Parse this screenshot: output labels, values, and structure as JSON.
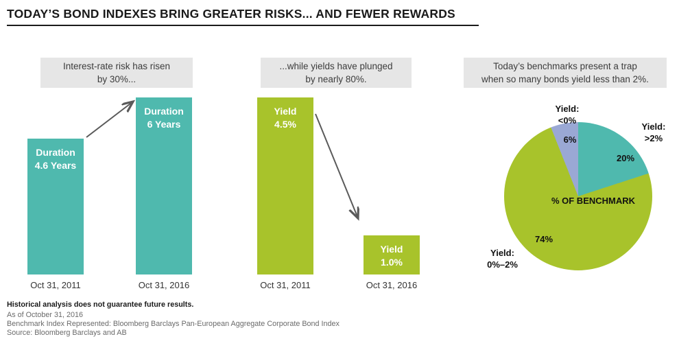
{
  "header": {
    "title": "TODAY’S BOND INDEXES BRING GREATER RISKS... AND FEWER REWARDS"
  },
  "colors": {
    "teal": "#4fb9ae",
    "green": "#a8c32b",
    "periwinkle": "#9aa8d4",
    "caption_bg": "#e6e6e6",
    "arrow": "#5a5a5a"
  },
  "chart_data": [
    {
      "type": "bar",
      "caption_lines": [
        "Interest-rate risk has risen",
        "by 30%..."
      ],
      "categories": [
        "Oct 31, 2011",
        "Oct 31, 2016"
      ],
      "values": [
        4.6,
        6
      ],
      "bar_labels": [
        [
          "Duration",
          "4.6 Years"
        ],
        [
          "Duration",
          "6 Years"
        ]
      ],
      "color": "#4fb9ae",
      "ylim": [
        0,
        6
      ],
      "annotation": "up-arrow"
    },
    {
      "type": "bar",
      "caption_lines": [
        "...while yields have plunged",
        "by nearly 80%."
      ],
      "categories": [
        "Oct 31, 2011",
        "Oct 31, 2016"
      ],
      "values": [
        4.5,
        1.0
      ],
      "bar_labels": [
        [
          "Yield",
          "4.5%"
        ],
        [
          "Yield",
          "1.0%"
        ]
      ],
      "color": "#a8c32b",
      "ylim": [
        0,
        4.5
      ],
      "annotation": "down-arrow"
    },
    {
      "type": "pie",
      "caption_lines": [
        "Today’s benchmarks present a trap",
        "when so many bonds yield less than 2%."
      ],
      "center_label": "% OF BENCHMARK",
      "slices": [
        {
          "label_lines": [
            "Yield:",
            ">2%"
          ],
          "value": 20,
          "pct_label": "20%",
          "color": "#4fb9ae"
        },
        {
          "label_lines": [
            "Yield:",
            "0%–2%"
          ],
          "value": 74,
          "pct_label": "74%",
          "color": "#a8c32b"
        },
        {
          "label_lines": [
            "Yield:",
            "<0%"
          ],
          "value": 6,
          "pct_label": "6%",
          "color": "#9aa8d4"
        }
      ]
    }
  ],
  "footer": {
    "disclaimer": "Historical analysis does not guarantee future results.",
    "as_of": "As of October 31, 2016",
    "benchmark": "Benchmark Index Represented: Bloomberg Barclays Pan-European Aggregate Corporate Bond Index",
    "source": "Source: Bloomberg Barclays and AB"
  }
}
